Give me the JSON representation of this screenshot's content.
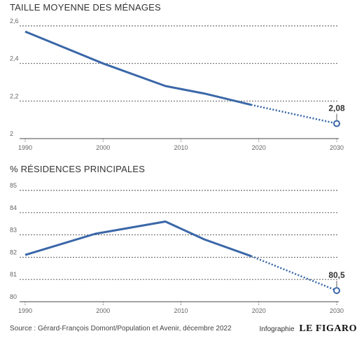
{
  "footer": {
    "source": "Source : Gérard-François Domont/Population et Avenir, décembre 2022",
    "credit_prefix": "Infographie",
    "logo_text": "LE FIGARO"
  },
  "colors": {
    "line": "#3a67a8",
    "grid": "#4a4a4a",
    "axis_text": "#666666",
    "label_text": "#333333"
  },
  "chart_data": [
    {
      "type": "line",
      "title": "TAILLE MOYENNE DES MÉNAGES",
      "xlabel": "",
      "ylabel": "",
      "x_ticks": [
        1990,
        2000,
        2010,
        2020,
        2030
      ],
      "x_range": [
        1990,
        2030
      ],
      "y_ticks": [
        "2",
        "2,2",
        "2,4",
        "2,6"
      ],
      "y_tick_values": [
        2,
        2.2,
        2.4,
        2.6
      ],
      "ylim": [
        2,
        2.6
      ],
      "grid": true,
      "series": [
        {
          "style": "solid",
          "x": [
            1990,
            2000,
            2008,
            2013,
            2019
          ],
          "values": [
            2.57,
            2.4,
            2.28,
            2.24,
            2.18
          ]
        },
        {
          "style": "dotted",
          "x": [
            2019,
            2030
          ],
          "values": [
            2.18,
            2.08
          ]
        }
      ],
      "annotation": {
        "x": 2030,
        "y": 2.08,
        "label": "2,08"
      }
    },
    {
      "type": "line",
      "title": "% RÉSIDENCES PRINCIPALES",
      "xlabel": "",
      "ylabel": "",
      "x_ticks": [
        1990,
        2000,
        2010,
        2020,
        2030
      ],
      "x_range": [
        1990,
        2030
      ],
      "y_ticks": [
        "80",
        "81",
        "82",
        "83",
        "84",
        "85"
      ],
      "y_tick_values": [
        80,
        81,
        82,
        83,
        84,
        85
      ],
      "ylim": [
        80,
        85
      ],
      "grid": true,
      "series": [
        {
          "style": "solid",
          "x": [
            1990,
            1999,
            2008,
            2013,
            2019
          ],
          "values": [
            82.1,
            83.05,
            83.6,
            82.8,
            82.05
          ]
        },
        {
          "style": "dotted",
          "x": [
            2019,
            2030
          ],
          "values": [
            82.05,
            80.5
          ]
        }
      ],
      "annotation": {
        "x": 2030,
        "y": 80.5,
        "label": "80,5"
      }
    }
  ]
}
